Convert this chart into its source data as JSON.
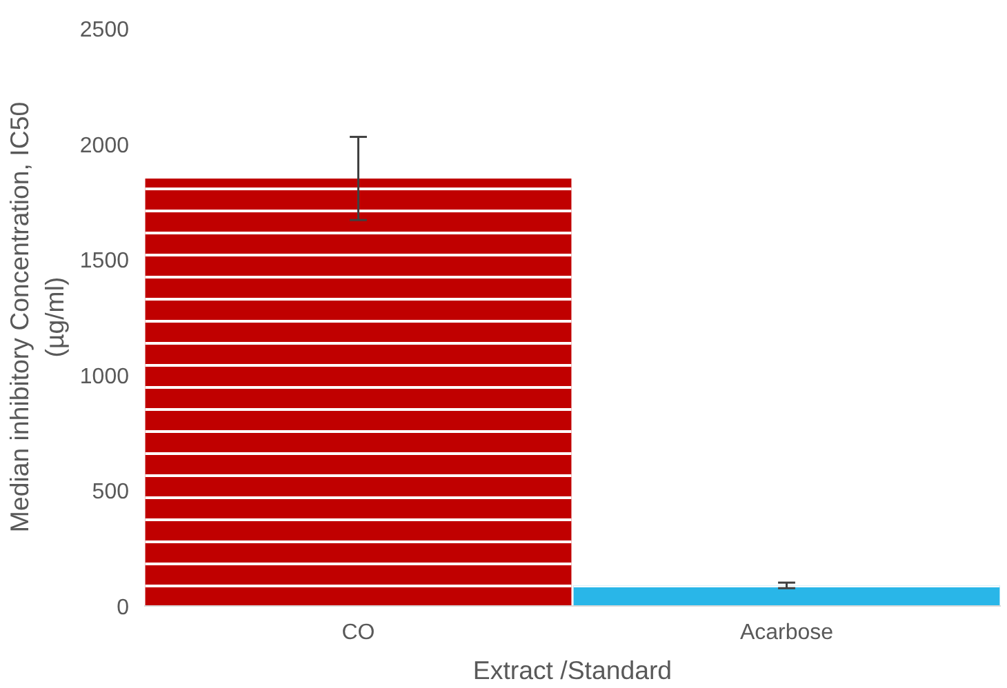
{
  "chart_data": {
    "type": "bar",
    "xlabel": "Extract /Standard",
    "ylabel": "Median inhibitory Concentration, IC50\n(µg/ml)",
    "categories": [
      "CO",
      "Acarbose"
    ],
    "values": [
      1850,
      89
    ],
    "colors": [
      "#c00000",
      "#29b6e8"
    ],
    "errors": [
      180,
      12
    ],
    "ylim": [
      0,
      2500
    ],
    "yticks": [
      0,
      500,
      1000,
      1500,
      2000,
      2500
    ],
    "grid": false
  }
}
